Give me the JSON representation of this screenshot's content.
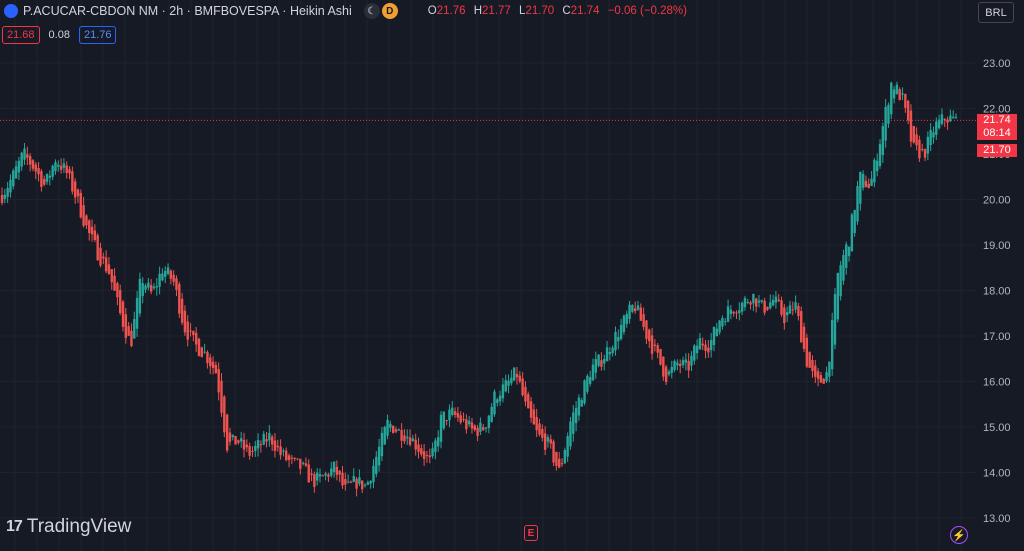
{
  "header": {
    "title": "P.ACUCAR-CBDON NM · 2h · BMFBOVESPA · Heikin Ashi",
    "badge_market_icon": "moon-icon",
    "badge_d": "D",
    "ohlc": {
      "o_label": "O",
      "o": "21.76",
      "h_label": "H",
      "h": "21.77",
      "l_label": "L",
      "l": "21.70",
      "c_label": "C",
      "c": "21.74",
      "change": "−0.06 (−0.28%)"
    }
  },
  "quote": {
    "bid": "21.68",
    "spread": "0.08",
    "ask": "21.76"
  },
  "currency": "BRL",
  "price_axis": {
    "labels": [
      "23.00",
      "22.00",
      "21.00",
      "20.00",
      "19.00",
      "18.00",
      "17.00",
      "16.00",
      "15.00",
      "14.00",
      "13.00"
    ],
    "last_price": "21.74",
    "countdown": "08:14",
    "low_tag": "21.70"
  },
  "branding": "TradingView",
  "buttons": {
    "events": "E",
    "flash_icon": "lightning-icon"
  },
  "colors": {
    "background": "#161a25",
    "up": "#26a69a",
    "down": "#ef5350",
    "grid": "#1e222d",
    "axis_text": "#b2b5be",
    "price_tag": "#f23645"
  },
  "chart_data": {
    "type": "candlestick",
    "style": "Heikin Ashi",
    "interval": "2h",
    "ylim": [
      13.0,
      23.5
    ],
    "yticks": [
      13,
      14,
      15,
      16,
      17,
      18,
      19,
      20,
      21,
      22,
      23
    ],
    "close_path": [
      20.1,
      20.5,
      21.0,
      20.7,
      20.3,
      20.9,
      20.6,
      20.0,
      19.3,
      18.8,
      18.4,
      17.5,
      16.8,
      18.3,
      17.9,
      18.5,
      18.2,
      17.2,
      16.8,
      16.6,
      16.2,
      14.6,
      14.7,
      14.4,
      14.6,
      14.8,
      14.4,
      14.2,
      14.1,
      13.8,
      13.9,
      14.1,
      13.6,
      13.8,
      13.7,
      14.4,
      15.1,
      14.9,
      14.8,
      14.5,
      14.2,
      15.2,
      15.3,
      15.1,
      14.9,
      15.0,
      15.7,
      15.9,
      16.2,
      15.3,
      14.8,
      14.6,
      14.0,
      15.1,
      15.7,
      16.3,
      16.5,
      16.9,
      17.3,
      17.7,
      17.1,
      16.6,
      16.1,
      16.4,
      16.3,
      16.9,
      16.8,
      17.4,
      17.6,
      17.7,
      17.9,
      17.6,
      17.8,
      17.4,
      17.7,
      16.5,
      15.9,
      16.2,
      18.4,
      19.1,
      20.5,
      20.3,
      21.4,
      22.6,
      22.2,
      21.1,
      21.0,
      21.6,
      21.8,
      21.74
    ],
    "last_price": 21.74
  }
}
